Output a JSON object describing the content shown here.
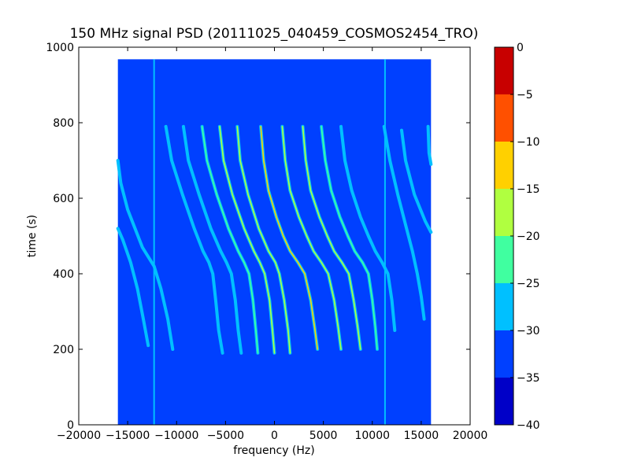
{
  "chart_data": {
    "type": "heatmap",
    "title": "150 MHz signal PSD (20111025_040459_COSMOS2454_TRO)",
    "xlabel": "frequency (Hz)",
    "ylabel": "time (s)",
    "xlim": [
      -20000,
      20000
    ],
    "ylim": [
      0,
      1000
    ],
    "x_ticks": [
      -20000,
      -15000,
      -10000,
      -5000,
      0,
      5000,
      10000,
      15000,
      20000
    ],
    "x_tick_labels": [
      "−20000",
      "−15000",
      "−10000",
      "−5000",
      "0",
      "5000",
      "10000",
      "15000",
      "20000"
    ],
    "y_ticks": [
      0,
      200,
      400,
      600,
      800,
      1000
    ],
    "y_tick_labels": [
      "0",
      "200",
      "400",
      "600",
      "800",
      "1000"
    ],
    "data_extent": {
      "x": [
        -16000,
        16000
      ],
      "y": [
        0,
        968
      ]
    },
    "background_level": -34,
    "colorbar": {
      "range": [
        -40,
        0
      ],
      "ticks": [
        0,
        -5,
        -10,
        -15,
        -20,
        -25,
        -30,
        -35,
        -40
      ],
      "tick_labels": [
        "0",
        "−5",
        "−10",
        "−15",
        "−20",
        "−25",
        "−30",
        "−35",
        "−40"
      ],
      "bands": [
        {
          "from": -40,
          "to": -35,
          "color": "#0000c8"
        },
        {
          "from": -35,
          "to": -30,
          "color": "#0040ff"
        },
        {
          "from": -30,
          "to": -25,
          "color": "#00c0ff"
        },
        {
          "from": -25,
          "to": -20,
          "color": "#40ffa0"
        },
        {
          "from": -20,
          "to": -15,
          "color": "#b0ff40"
        },
        {
          "from": -15,
          "to": -10,
          "color": "#ffd000"
        },
        {
          "from": -10,
          "to": -5,
          "color": "#ff5000"
        },
        {
          "from": -5,
          "to": 0,
          "color": "#c80000"
        }
      ]
    },
    "vertical_lines": [
      {
        "name": "line-a",
        "x": -12300,
        "y": [
          0,
          968
        ],
        "level": -27
      },
      {
        "name": "line-b",
        "x": 11300,
        "y": [
          0,
          968
        ],
        "level": -29
      }
    ],
    "traces": [
      {
        "name": "trace-main",
        "points": [
          [
            -1400,
            790
          ],
          [
            -1100,
            700
          ],
          [
            -600,
            620
          ],
          [
            200,
            550
          ],
          [
            900,
            500
          ],
          [
            1600,
            460
          ],
          [
            2400,
            430
          ],
          [
            3100,
            400
          ],
          [
            3700,
            330
          ],
          [
            4100,
            260
          ],
          [
            4400,
            200
          ]
        ],
        "level": -10
      },
      {
        "name": "trace-neg1",
        "points": [
          [
            -3800,
            790
          ],
          [
            -3500,
            700
          ],
          [
            -2700,
            610
          ],
          [
            -1600,
            520
          ],
          [
            -600,
            460
          ],
          [
            100,
            430
          ],
          [
            500,
            400
          ],
          [
            1000,
            330
          ],
          [
            1400,
            250
          ],
          [
            1600,
            190
          ]
        ],
        "level": -15
      },
      {
        "name": "trace-neg2",
        "points": [
          [
            -5600,
            790
          ],
          [
            -5200,
            700
          ],
          [
            -4300,
            610
          ],
          [
            -3100,
            520
          ],
          [
            -2100,
            460
          ],
          [
            -1500,
            430
          ],
          [
            -1000,
            400
          ],
          [
            -500,
            330
          ],
          [
            -200,
            250
          ],
          [
            0,
            190
          ]
        ],
        "level": -18
      },
      {
        "name": "trace-neg3",
        "points": [
          [
            -7400,
            790
          ],
          [
            -6900,
            700
          ],
          [
            -5900,
            610
          ],
          [
            -4700,
            520
          ],
          [
            -3700,
            460
          ],
          [
            -3100,
            430
          ],
          [
            -2600,
            400
          ],
          [
            -2200,
            330
          ],
          [
            -1900,
            250
          ],
          [
            -1700,
            190
          ]
        ],
        "level": -24
      },
      {
        "name": "trace-neg4",
        "points": [
          [
            -9300,
            790
          ],
          [
            -8800,
            700
          ],
          [
            -7700,
            610
          ],
          [
            -6500,
            520
          ],
          [
            -5500,
            460
          ],
          [
            -4900,
            430
          ],
          [
            -4400,
            400
          ],
          [
            -4000,
            330
          ],
          [
            -3700,
            250
          ],
          [
            -3400,
            190
          ]
        ],
        "level": -25
      },
      {
        "name": "trace-neg5",
        "points": [
          [
            -11100,
            790
          ],
          [
            -10500,
            700
          ],
          [
            -9400,
            610
          ],
          [
            -8200,
            520
          ],
          [
            -7300,
            460
          ],
          [
            -6700,
            430
          ],
          [
            -6300,
            400
          ],
          [
            -6000,
            330
          ],
          [
            -5700,
            250
          ],
          [
            -5300,
            190
          ]
        ],
        "level": -26
      },
      {
        "name": "trace-pos1",
        "points": [
          [
            800,
            790
          ],
          [
            1100,
            700
          ],
          [
            1600,
            620
          ],
          [
            2500,
            550
          ],
          [
            3300,
            500
          ],
          [
            4000,
            460
          ],
          [
            4800,
            430
          ],
          [
            5500,
            400
          ],
          [
            6100,
            330
          ],
          [
            6500,
            260
          ],
          [
            6800,
            200
          ]
        ],
        "level": -15
      },
      {
        "name": "trace-pos2",
        "points": [
          [
            2900,
            790
          ],
          [
            3200,
            700
          ],
          [
            3700,
            620
          ],
          [
            4600,
            550
          ],
          [
            5400,
            500
          ],
          [
            6100,
            460
          ],
          [
            6900,
            430
          ],
          [
            7600,
            400
          ],
          [
            8100,
            330
          ],
          [
            8500,
            260
          ],
          [
            8800,
            200
          ]
        ],
        "level": -17
      },
      {
        "name": "trace-pos3",
        "points": [
          [
            4800,
            790
          ],
          [
            5200,
            700
          ],
          [
            5800,
            620
          ],
          [
            6700,
            550
          ],
          [
            7500,
            500
          ],
          [
            8200,
            460
          ],
          [
            9000,
            430
          ],
          [
            9600,
            400
          ],
          [
            10000,
            330
          ],
          [
            10300,
            260
          ],
          [
            10500,
            200
          ]
        ],
        "level": -24
      },
      {
        "name": "trace-pos4",
        "points": [
          [
            6800,
            790
          ],
          [
            7200,
            700
          ],
          [
            7900,
            620
          ],
          [
            8800,
            550
          ],
          [
            9600,
            500
          ],
          [
            10300,
            460
          ],
          [
            11000,
            430
          ],
          [
            11600,
            400
          ],
          [
            12000,
            330
          ],
          [
            12300,
            250
          ]
        ],
        "level": -25
      },
      {
        "name": "trace-pos5",
        "points": [
          [
            11200,
            790
          ],
          [
            11800,
            700
          ],
          [
            12600,
            610
          ],
          [
            13500,
            520
          ],
          [
            14100,
            460
          ],
          [
            14600,
            400
          ],
          [
            15000,
            340
          ],
          [
            15300,
            280
          ]
        ],
        "level": -26
      },
      {
        "name": "trace-pos6",
        "points": [
          [
            13000,
            780
          ],
          [
            13400,
            700
          ],
          [
            14300,
            610
          ],
          [
            15400,
            540
          ],
          [
            16000,
            510
          ]
        ],
        "level": -26
      },
      {
        "name": "trace-pos7",
        "points": [
          [
            15700,
            790
          ],
          [
            15800,
            720
          ],
          [
            16000,
            690
          ]
        ],
        "level": -26
      },
      {
        "name": "trace-left1",
        "points": [
          [
            -16000,
            700
          ],
          [
            -15700,
            640
          ],
          [
            -15000,
            570
          ],
          [
            -13500,
            470
          ],
          [
            -12300,
            420
          ],
          [
            -11600,
            360
          ],
          [
            -10900,
            280
          ],
          [
            -10400,
            200
          ]
        ],
        "level": -25
      },
      {
        "name": "trace-left2",
        "points": [
          [
            -16000,
            520
          ],
          [
            -15500,
            490
          ],
          [
            -14700,
            430
          ],
          [
            -14000,
            360
          ],
          [
            -13400,
            280
          ],
          [
            -12900,
            210
          ]
        ],
        "level": -26
      }
    ]
  }
}
